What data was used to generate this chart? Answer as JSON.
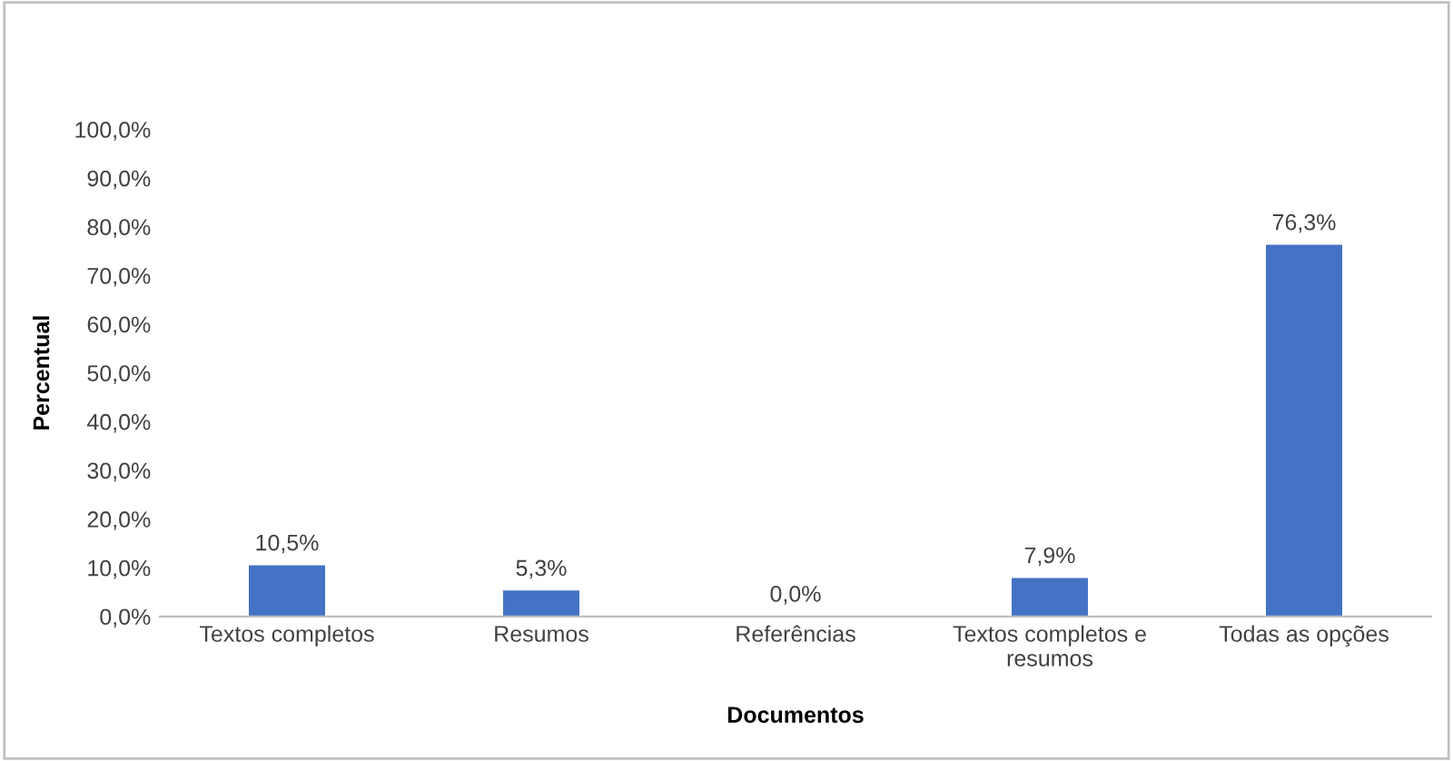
{
  "chart_data": {
    "type": "bar",
    "xlabel": "Documentos",
    "ylabel": "Percentual",
    "categories": [
      "Textos completos",
      "Resumos",
      "Referências",
      "Textos completos e\nresumos",
      "Todas as opções"
    ],
    "values": [
      10.5,
      5.3,
      0.0,
      7.9,
      76.3
    ],
    "color": "#4472c4",
    "value_labels": [
      "10,5%",
      "5,3%",
      "0,0%",
      "7,9%",
      "76,3%"
    ],
    "ylim": [
      0,
      100
    ],
    "yticks": [
      {
        "value": 0,
        "label": "0,0%"
      },
      {
        "value": 10,
        "label": "10,0%"
      },
      {
        "value": 20,
        "label": "20,0%"
      },
      {
        "value": 30,
        "label": "30,0%"
      },
      {
        "value": 40,
        "label": "40,0%"
      },
      {
        "value": 50,
        "label": "50,0%"
      },
      {
        "value": 60,
        "label": "60,0%"
      },
      {
        "value": 70,
        "label": "70,0%"
      },
      {
        "value": 80,
        "label": "80,0%"
      },
      {
        "value": 90,
        "label": "90,0%"
      },
      {
        "value": 100,
        "label": "100,0%"
      }
    ],
    "grid": false,
    "legend": false
  }
}
